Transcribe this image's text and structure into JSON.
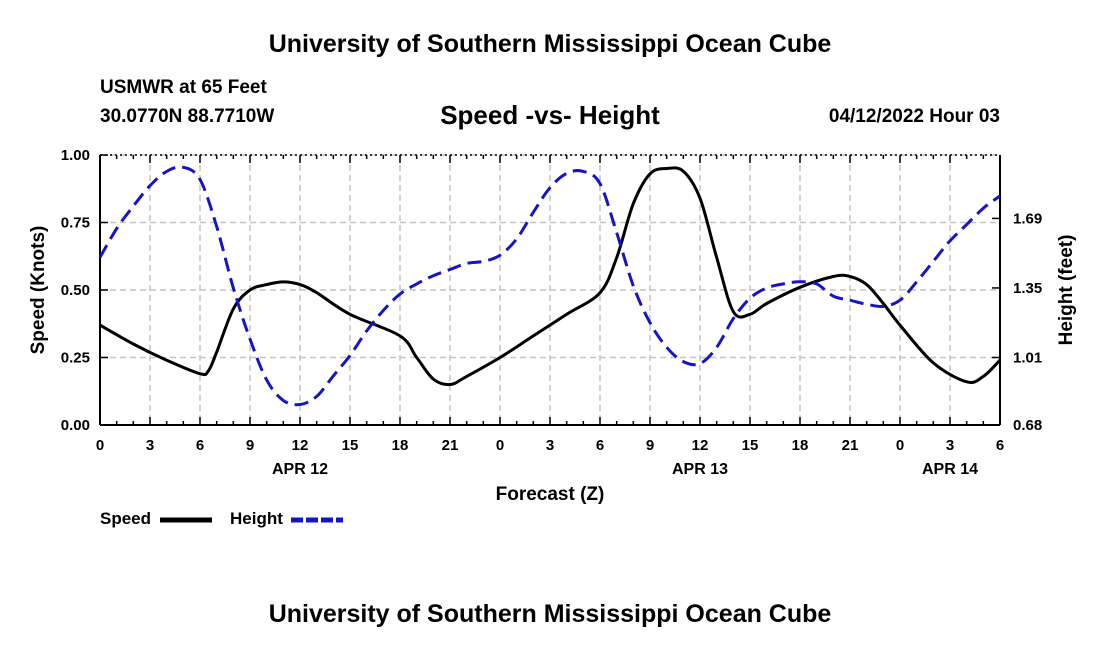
{
  "page": {
    "title_top": "University of Southern Mississippi Ocean Cube",
    "title_bottom": "University of Southern Mississippi Ocean Cube",
    "station": "USMWR at 65 Feet",
    "coords": "30.0770N  88.7710W",
    "datetime": "04/12/2022 Hour 03"
  },
  "chart_data": {
    "type": "line",
    "title": "Speed -vs- Height",
    "xlabel": "Forecast (Z)",
    "ylabel": "Speed (Knots)",
    "y2label": "Height (feet)",
    "x_range": [
      0,
      54
    ],
    "x_tick_values": [
      0,
      3,
      6,
      9,
      12,
      15,
      18,
      21,
      24,
      27,
      30,
      33,
      36,
      39,
      42,
      45,
      48,
      51,
      54
    ],
    "x_tick_labels": [
      "0",
      "3",
      "6",
      "9",
      "12",
      "15",
      "18",
      "21",
      "0",
      "3",
      "6",
      "9",
      "12",
      "15",
      "18",
      "21",
      "0",
      "3",
      "6"
    ],
    "date_labels": [
      {
        "hour": 12,
        "label": "APR 12"
      },
      {
        "hour": 36,
        "label": "APR 13"
      },
      {
        "hour": 51,
        "label": "APR 14"
      }
    ],
    "ylim": [
      0,
      1
    ],
    "y_ticks": [
      0,
      0.25,
      0.5,
      0.75,
      1
    ],
    "y_tick_labels": [
      "0.00",
      "0.25",
      "0.50",
      "0.75",
      "1.00"
    ],
    "y2lim": [
      0.68,
      2.0
    ],
    "y2_ticks": [
      0.68,
      1.01,
      1.35,
      1.69
    ],
    "y2_tick_labels": [
      "0.68",
      "1.01",
      "1.35",
      "1.69"
    ],
    "grid": true,
    "series": [
      {
        "name": "Speed",
        "axis": "left",
        "color": "#000000",
        "dash": "solid",
        "x": [
          0,
          2,
          4,
          6,
          6.5,
          7,
          8,
          9,
          10,
          11,
          12,
          13,
          15,
          18,
          19,
          20,
          21,
          22,
          24,
          26,
          28,
          30,
          31,
          32,
          33,
          34,
          35,
          36,
          37,
          38,
          39,
          40,
          42,
          44,
          45,
          46,
          47,
          48,
          50,
          52,
          53,
          54
        ],
        "y": [
          0.37,
          0.3,
          0.24,
          0.19,
          0.2,
          0.27,
          0.43,
          0.5,
          0.52,
          0.53,
          0.52,
          0.49,
          0.41,
          0.33,
          0.25,
          0.17,
          0.15,
          0.18,
          0.25,
          0.33,
          0.41,
          0.49,
          0.62,
          0.82,
          0.93,
          0.95,
          0.94,
          0.84,
          0.62,
          0.42,
          0.41,
          0.45,
          0.51,
          0.55,
          0.55,
          0.52,
          0.45,
          0.37,
          0.23,
          0.16,
          0.18,
          0.24
        ]
      },
      {
        "name": "Height",
        "axis": "right",
        "color": "#1515c8",
        "dash": "dashed",
        "x": [
          0,
          1,
          2,
          3,
          4,
          5,
          6,
          7,
          8,
          9,
          10,
          11,
          12,
          13,
          14,
          15,
          16,
          17,
          18,
          19,
          20,
          21,
          22,
          23,
          24,
          25,
          26,
          27,
          28,
          29,
          30,
          31,
          32,
          33,
          34,
          35,
          36,
          37,
          38,
          39,
          40,
          41,
          42,
          43,
          44,
          45,
          46,
          47,
          48,
          49,
          50,
          51,
          52,
          53,
          54
        ],
        "y": [
          1.5,
          1.64,
          1.75,
          1.85,
          1.92,
          1.94,
          1.88,
          1.65,
          1.35,
          1.1,
          0.9,
          0.8,
          0.78,
          0.82,
          0.92,
          1.02,
          1.14,
          1.24,
          1.32,
          1.37,
          1.41,
          1.44,
          1.47,
          1.48,
          1.51,
          1.59,
          1.72,
          1.84,
          1.91,
          1.92,
          1.86,
          1.62,
          1.36,
          1.18,
          1.06,
          0.99,
          0.98,
          1.06,
          1.2,
          1.3,
          1.35,
          1.37,
          1.38,
          1.37,
          1.31,
          1.29,
          1.27,
          1.26,
          1.29,
          1.38,
          1.48,
          1.58,
          1.66,
          1.74,
          1.8
        ]
      }
    ],
    "legend": [
      {
        "label": "Speed",
        "color": "#000000",
        "dash": "solid"
      },
      {
        "label": "Height",
        "color": "#1515c8",
        "dash": "dashed"
      }
    ],
    "legend_position": "bottom-left"
  }
}
